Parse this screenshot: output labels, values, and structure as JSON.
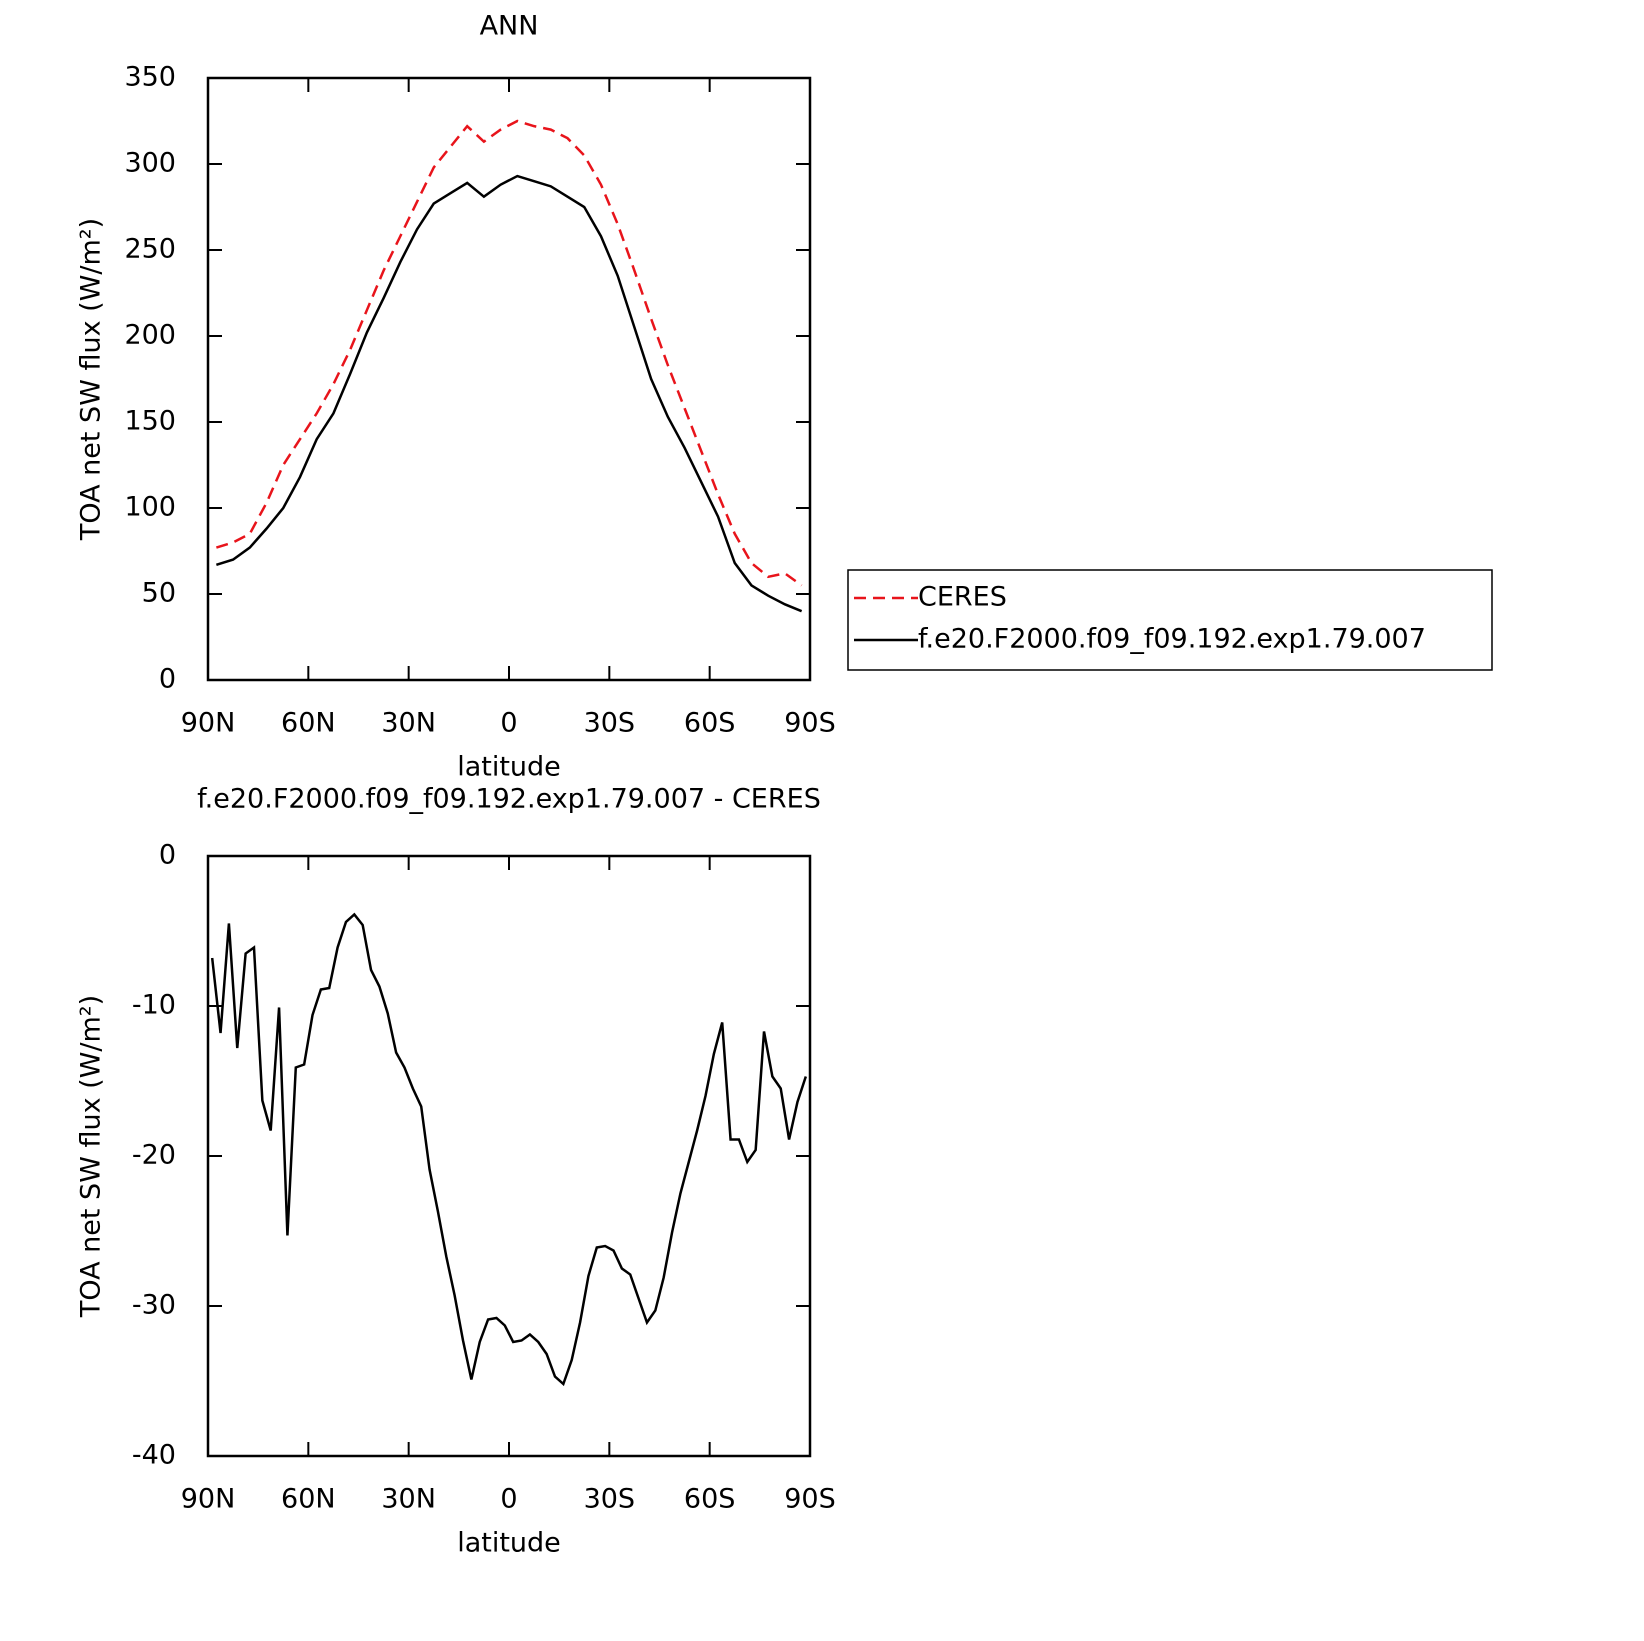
{
  "chart_data": [
    {
      "type": "line",
      "title": "ANN",
      "xlabel": "latitude",
      "ylabel": "TOA net SW flux (W/m²)",
      "x": [
        87.5,
        82.5,
        77.5,
        72.5,
        67.5,
        62.5,
        57.5,
        52.5,
        47.5,
        42.5,
        37.5,
        32.5,
        27.5,
        22.5,
        17.5,
        12.5,
        7.5,
        2.5,
        -2.5,
        -7.5,
        -12.5,
        -17.5,
        -22.5,
        -27.5,
        -32.5,
        -37.5,
        -42.5,
        -47.5,
        -52.5,
        -57.5,
        -62.5,
        -67.5,
        -72.5,
        -77.5,
        -82.5,
        -87.5
      ],
      "series": [
        {
          "name": "CERES",
          "color": "#e8141b",
          "style": "dashed",
          "values": [
            77,
            80,
            85,
            103,
            125,
            140,
            155,
            172,
            192,
            215,
            238,
            258,
            278,
            298,
            310,
            322,
            313,
            320,
            325,
            322,
            320,
            315,
            305,
            288,
            265,
            238,
            210,
            183,
            158,
            133,
            108,
            85,
            68,
            60,
            62,
            55
          ]
        },
        {
          "name": "f.e20.F2000.f09_f09.192.exp1.79.007",
          "color": "#000000",
          "style": "solid",
          "values": [
            67,
            70,
            77,
            88,
            100,
            118,
            140,
            155,
            178,
            202,
            222,
            243,
            262,
            277,
            283,
            289,
            281,
            288,
            293,
            290,
            287,
            281,
            275,
            258,
            235,
            205,
            175,
            153,
            135,
            115,
            95,
            68,
            55,
            49,
            44,
            40
          ]
        }
      ],
      "xlim": [
        90,
        -90
      ],
      "xticks": [
        {
          "value": 90,
          "label": "90N"
        },
        {
          "value": 60,
          "label": "60N"
        },
        {
          "value": 30,
          "label": "30N"
        },
        0,
        {
          "value": -30,
          "label": "30S"
        },
        {
          "value": -60,
          "label": "60S"
        },
        {
          "value": -90,
          "label": "90S"
        }
      ],
      "ylim": [
        0,
        350
      ],
      "yticks": [
        0,
        50,
        100,
        150,
        200,
        250,
        300,
        350
      ],
      "legend": "right"
    },
    {
      "type": "line",
      "title": "f.e20.F2000.f09_f09.192.exp1.79.007 - CERES",
      "xlabel": "latitude",
      "ylabel": "TOA net SW flux (W/m²)",
      "x": [
        88.75,
        86.25,
        83.75,
        81.25,
        78.75,
        76.25,
        73.75,
        71.25,
        68.75,
        66.25,
        63.75,
        61.25,
        58.75,
        56.25,
        53.75,
        51.25,
        48.75,
        46.25,
        43.75,
        41.25,
        38.75,
        36.25,
        33.75,
        31.25,
        28.75,
        26.25,
        23.75,
        21.25,
        18.75,
        16.25,
        13.75,
        11.25,
        8.75,
        6.25,
        3.75,
        1.25,
        -1.25,
        -3.75,
        -6.25,
        -8.75,
        -11.25,
        -13.75,
        -16.25,
        -18.75,
        -21.25,
        -23.75,
        -26.25,
        -28.75,
        -31.25,
        -33.75,
        -36.25,
        -38.75,
        -41.25,
        -43.75,
        -46.25,
        -48.75,
        -51.25,
        -53.75,
        -56.25,
        -58.75,
        -61.25,
        -63.75,
        -66.25,
        -68.75,
        -71.25,
        -73.75,
        -76.25,
        -78.75,
        -81.25,
        -83.75,
        -86.25,
        -88.75
      ],
      "values": [
        -6.8,
        -11.8,
        -4.5,
        -12.8,
        -6.5,
        -6.1,
        -16.3,
        -18.3,
        -10.1,
        -25.3,
        -14.1,
        -13.9,
        -10.6,
        -8.9,
        -8.8,
        -6.1,
        -4.4,
        -3.9,
        -4.6,
        -7.6,
        -8.7,
        -10.5,
        -13.1,
        -14.1,
        -15.5,
        -16.7,
        -20.9,
        -23.7,
        -26.7,
        -29.3,
        -32.3,
        -34.9,
        -32.4,
        -30.9,
        -30.8,
        -31.3,
        -32.4,
        -32.3,
        -31.9,
        -32.4,
        -33.2,
        -34.7,
        -35.2,
        -33.6,
        -31.1,
        -28.0,
        -26.1,
        -26.0,
        -26.3,
        -27.5,
        -27.9,
        -29.5,
        -31.1,
        -30.3,
        -28.1,
        -25.1,
        -22.5,
        -20.4,
        -18.3,
        -16.0,
        -13.2,
        -11.1,
        -18.9,
        -18.9,
        -20.4,
        -19.6,
        -11.7,
        -14.7,
        -15.5,
        -18.9,
        -16.4,
        -14.7
      ],
      "color": "#000000",
      "xlim": [
        90,
        -90
      ],
      "xticks": [
        {
          "value": 90,
          "label": "90N"
        },
        {
          "value": 60,
          "label": "60N"
        },
        {
          "value": 30,
          "label": "30N"
        },
        0,
        {
          "value": -30,
          "label": "30S"
        },
        {
          "value": -60,
          "label": "60S"
        },
        {
          "value": -90,
          "label": "90S"
        }
      ],
      "ylim": [
        -40,
        0
      ],
      "yticks": [
        -40,
        -30,
        -20,
        -10,
        0
      ]
    }
  ]
}
